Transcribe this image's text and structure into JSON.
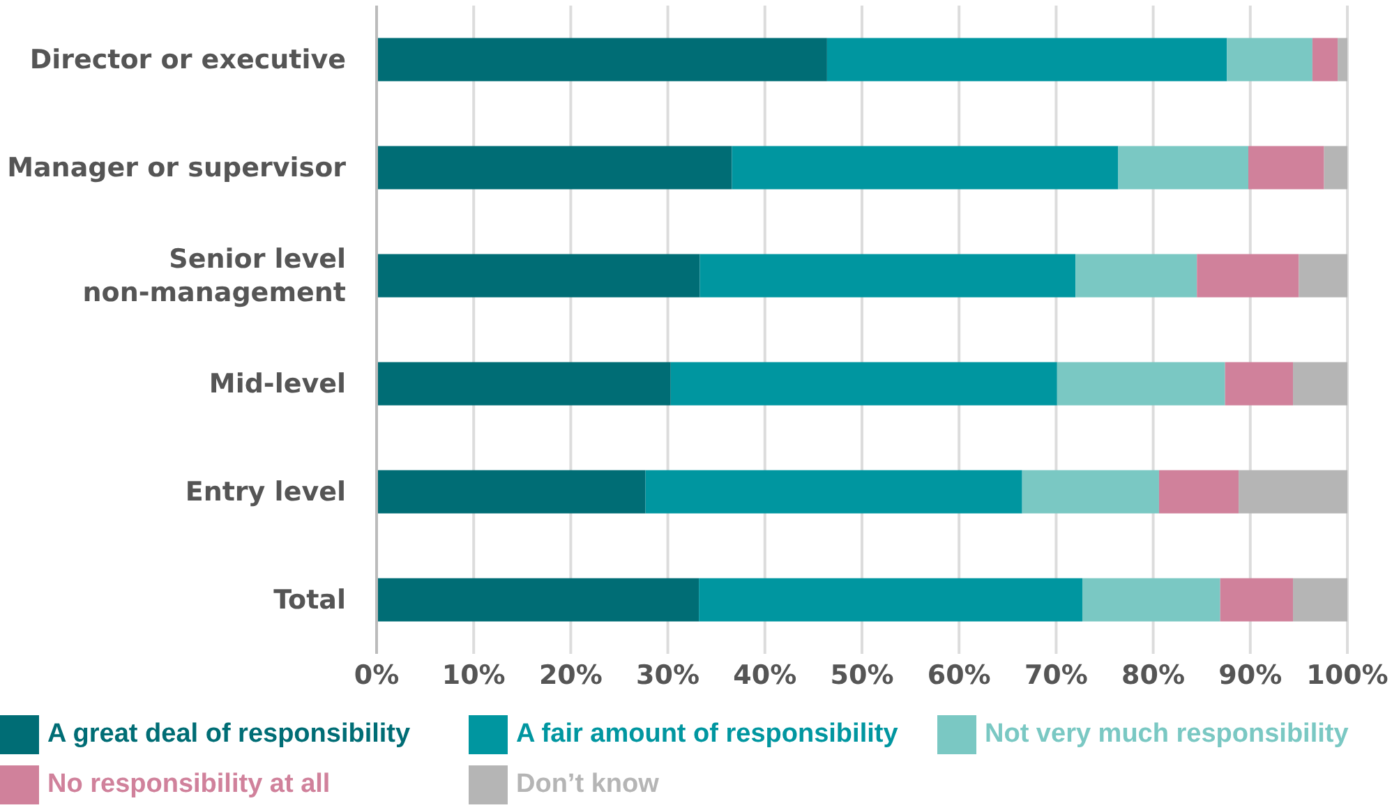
{
  "chart_data": {
    "type": "bar",
    "orientation": "horizontal",
    "stacked": true,
    "categories": [
      "Director or executive",
      "Manager or supervisor",
      "Senior level\nnon-management",
      "Mid-level",
      "Entry level",
      "Total"
    ],
    "series": [
      {
        "name": "A great deal of responsibility",
        "color": "#006d75",
        "values": [
          46.4,
          36.6,
          33.3,
          30.3,
          27.7,
          33.2
        ]
      },
      {
        "name": "A fair amount of responsibility",
        "color": "#0096a0",
        "values": [
          41.2,
          39.8,
          38.7,
          39.8,
          38.8,
          39.5
        ]
      },
      {
        "name": "Not very much responsibility",
        "color": "#7ac8c3",
        "values": [
          8.8,
          13.4,
          12.5,
          17.3,
          14.1,
          14.2
        ]
      },
      {
        "name": "No responsibility at all",
        "color": "#d0819b",
        "values": [
          2.6,
          7.8,
          10.5,
          7.0,
          8.2,
          7.5
        ]
      },
      {
        "name": "Don’t know",
        "color": "#b5b5b5",
        "values": [
          1.0,
          2.4,
          5.0,
          5.6,
          11.2,
          5.6
        ]
      }
    ],
    "xlim": [
      0,
      100
    ],
    "xticks": [
      {
        "value": 0,
        "label": "0%"
      },
      {
        "value": 10,
        "label": "10%"
      },
      {
        "value": 20,
        "label": "20%"
      },
      {
        "value": 30,
        "label": "30%"
      },
      {
        "value": 40,
        "label": "40%"
      },
      {
        "value": 50,
        "label": "50%"
      },
      {
        "value": 60,
        "label": "60%"
      },
      {
        "value": 70,
        "label": "70%"
      },
      {
        "value": 80,
        "label": "80%"
      },
      {
        "value": 90,
        "label": "90%"
      },
      {
        "value": 100,
        "label": "100%"
      }
    ],
    "grid": "x",
    "legend": "bottom"
  }
}
